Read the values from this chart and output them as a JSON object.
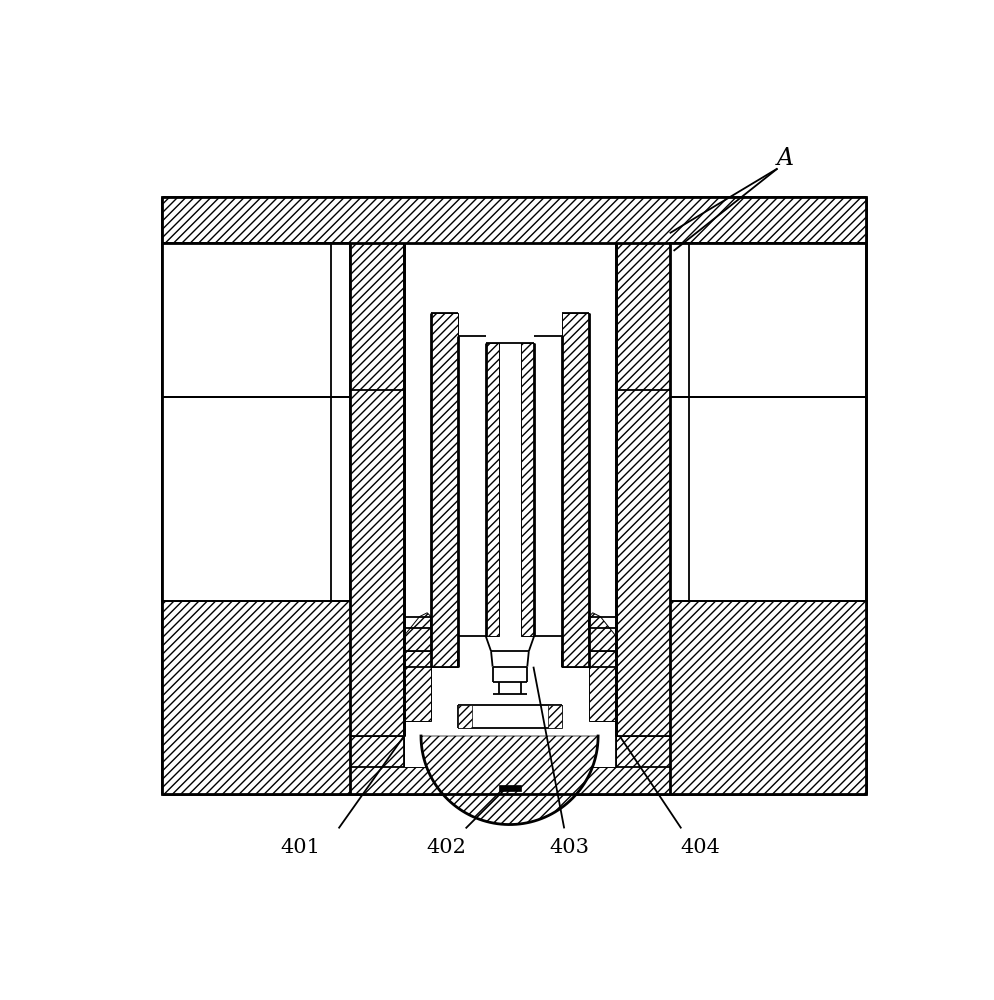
{
  "lw": 1.3,
  "lw2": 2.0,
  "hatch": "////",
  "label_A": "A",
  "labels": [
    "401",
    "402",
    "403",
    "404"
  ],
  "label_fs": 15,
  "annot_fs": 17
}
